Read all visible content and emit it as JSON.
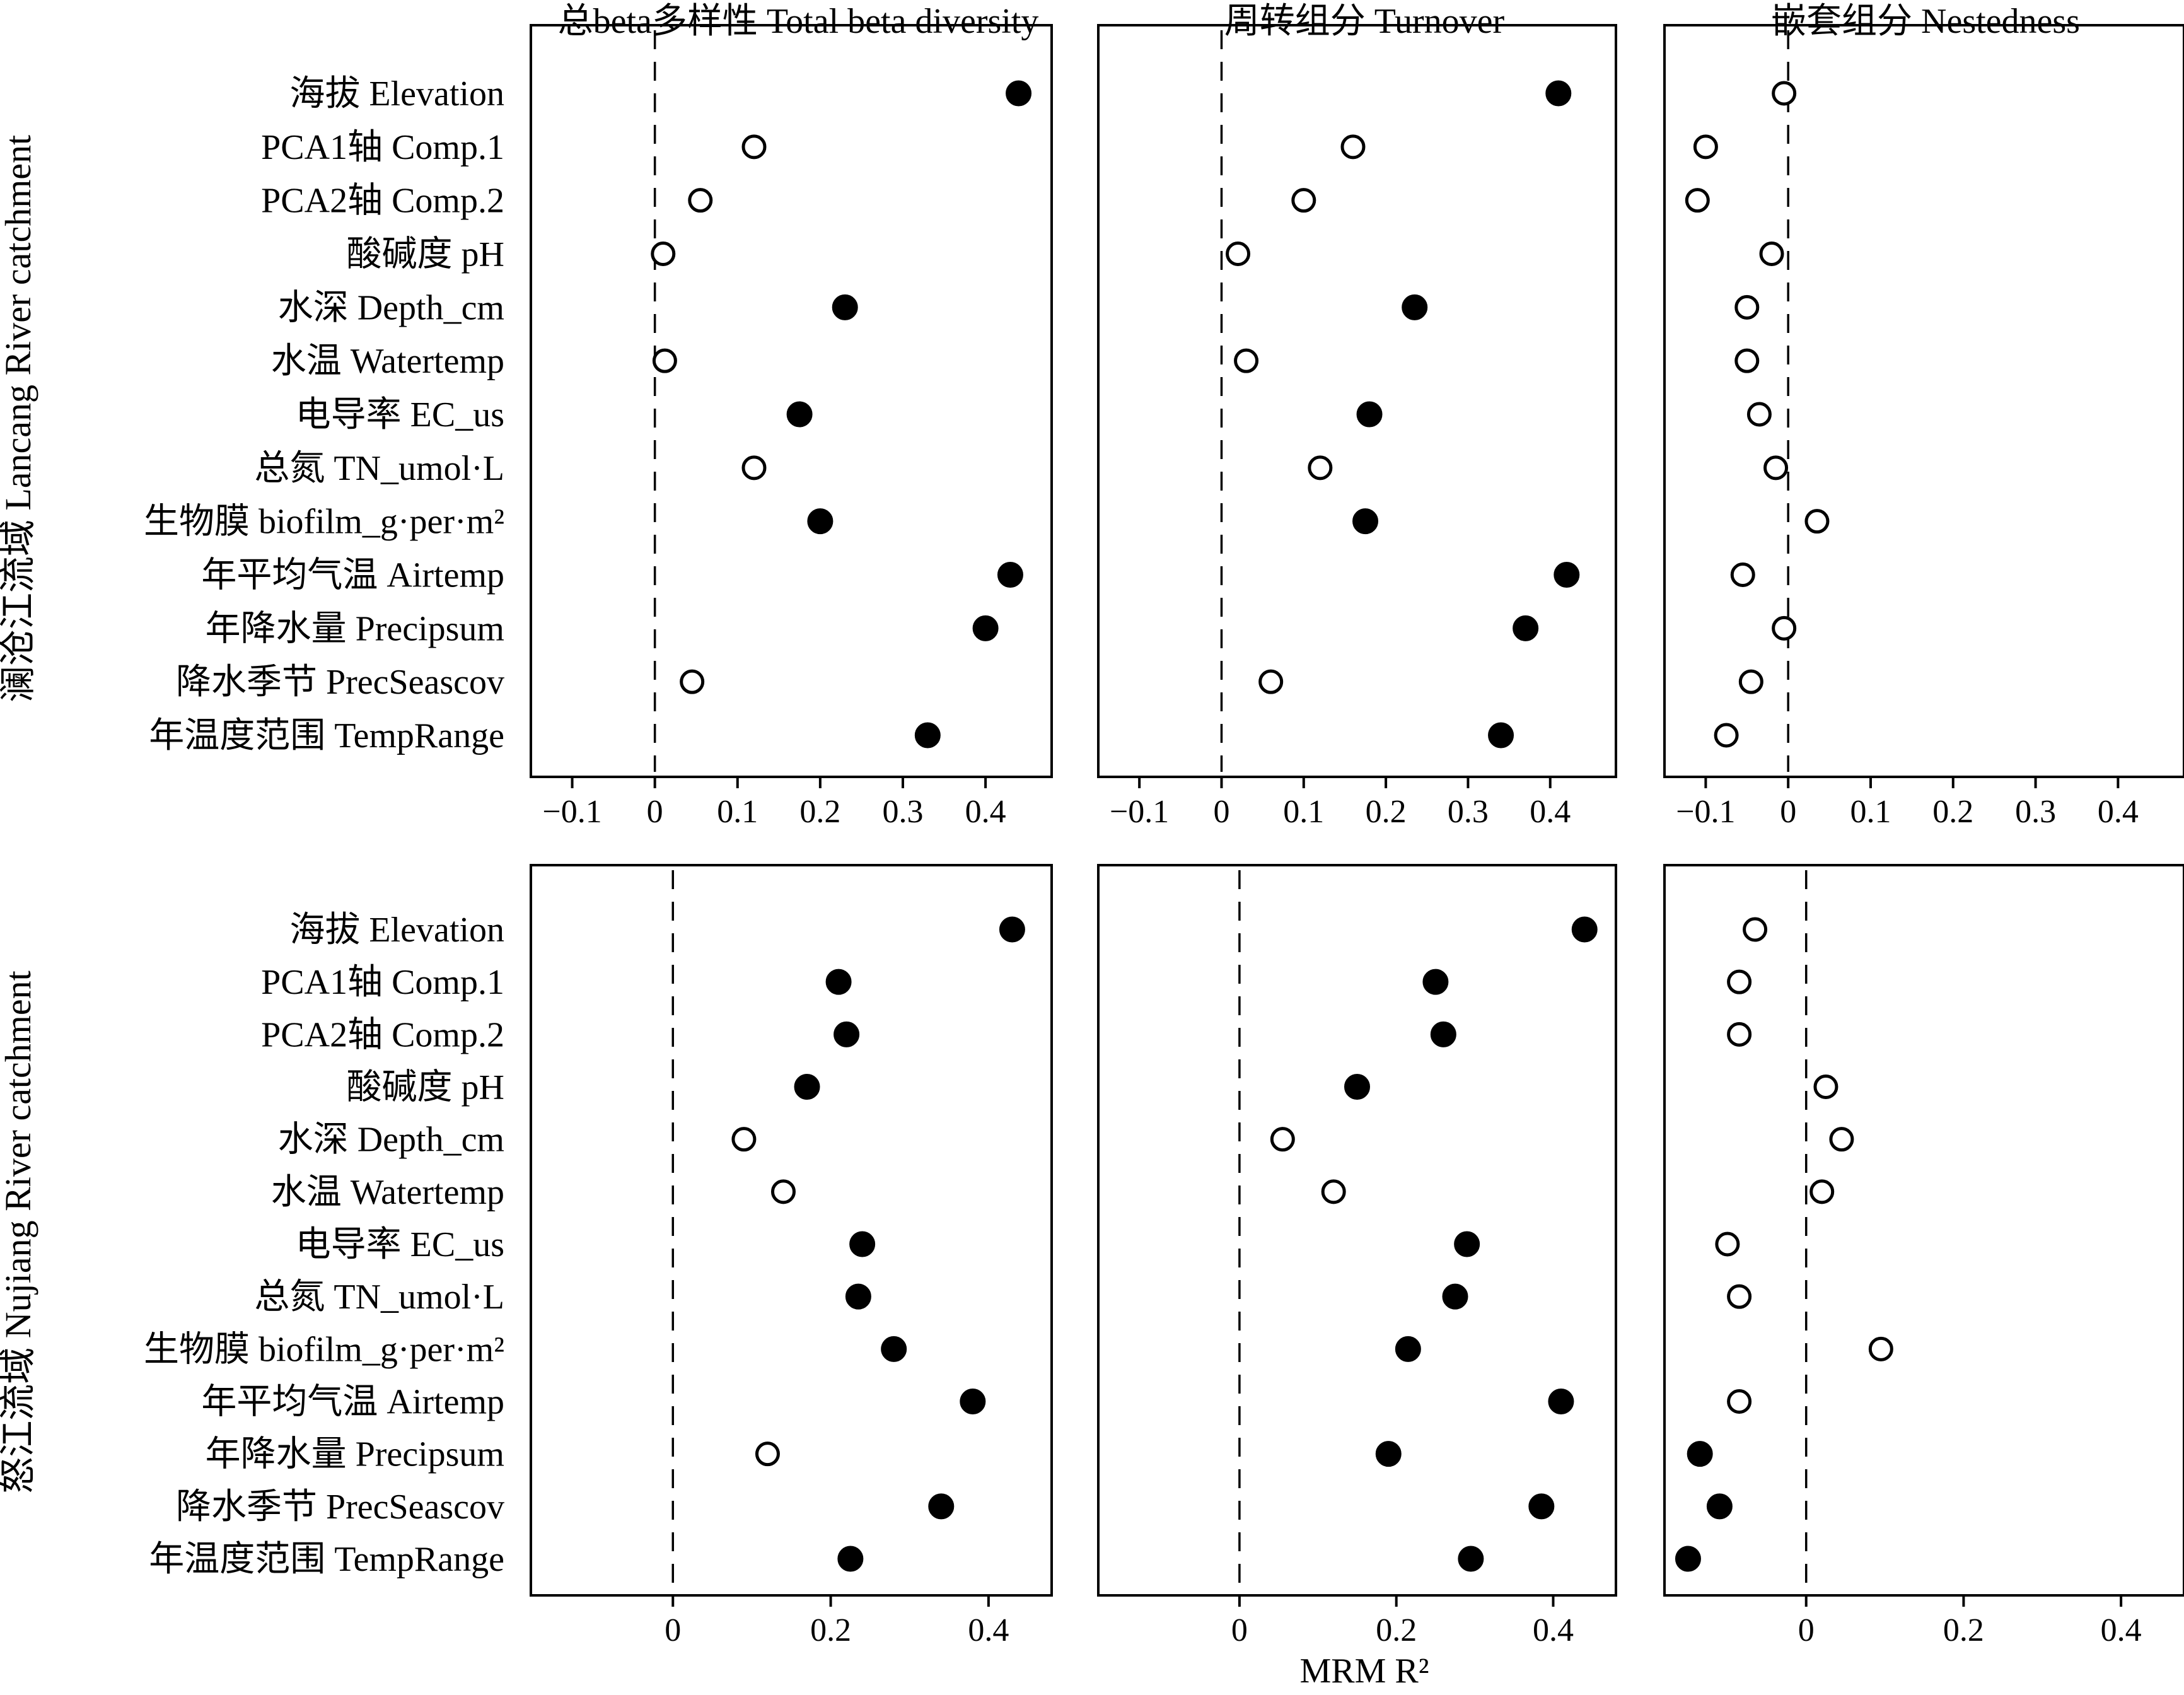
{
  "chart_data": {
    "type": "scatter",
    "column_titles": [
      "总beta多样性 Total beta diversity",
      "周转组分 Turnover",
      "嵌套组分 Nestedness"
    ],
    "row_labels": [
      "澜沧江流域 Lancang River catchment",
      "怒江流域 Nujiang River catchment"
    ],
    "xlabel": "MRM R²",
    "categories": [
      "海拔 Elevation",
      "PCA1轴 Comp.1",
      "PCA2轴 Comp.2",
      "酸碱度 pH",
      "水深 Depth_cm",
      "水温 Watertemp",
      "电导率 EC_us",
      "总氮 TN_umol·L",
      "生物膜 biofilm_g·per·m²",
      "年平均气温 Airtemp",
      "年降水量 Precipsum",
      "降水季节 PrecSeascov",
      "年温度范围 TempRange"
    ],
    "marker_legend": {
      "filled": "significant",
      "open": "not significant"
    },
    "reference_line": {
      "x": 0,
      "style": "dashed"
    },
    "panels": [
      {
        "row": 0,
        "col": 0,
        "xlim": [
          -0.15,
          0.48
        ],
        "ticks": [
          -0.1,
          0,
          0.1,
          0.2,
          0.3,
          0.4
        ],
        "tick_labels": [
          "−0.1",
          "0",
          "0.1",
          "0.2",
          "0.3",
          "0.4"
        ],
        "values": [
          0.44,
          0.12,
          0.055,
          0.01,
          0.23,
          0.012,
          0.175,
          0.12,
          0.2,
          0.43,
          0.4,
          0.045,
          0.33
        ],
        "filled": [
          true,
          false,
          false,
          false,
          true,
          false,
          true,
          false,
          true,
          true,
          true,
          false,
          true
        ]
      },
      {
        "row": 0,
        "col": 1,
        "xlim": [
          -0.15,
          0.48
        ],
        "ticks": [
          -0.1,
          0,
          0.1,
          0.2,
          0.3,
          0.4
        ],
        "tick_labels": [
          "−0.1",
          "0",
          "0.1",
          "0.2",
          "0.3",
          "0.4"
        ],
        "values": [
          0.41,
          0.16,
          0.1,
          0.02,
          0.235,
          0.03,
          0.18,
          0.12,
          0.175,
          0.42,
          0.37,
          0.06,
          0.34
        ],
        "filled": [
          true,
          false,
          false,
          false,
          true,
          false,
          true,
          false,
          true,
          true,
          true,
          false,
          true
        ]
      },
      {
        "row": 0,
        "col": 2,
        "xlim": [
          -0.15,
          0.48
        ],
        "ticks": [
          -0.1,
          0,
          0.1,
          0.2,
          0.3,
          0.4
        ],
        "tick_labels": [
          "−0.1",
          "0",
          "0.1",
          "0.2",
          "0.3",
          "0.4"
        ],
        "values": [
          -0.005,
          -0.1,
          -0.11,
          -0.02,
          -0.05,
          -0.05,
          -0.035,
          -0.015,
          0.035,
          -0.055,
          -0.005,
          -0.045,
          -0.075
        ],
        "filled": [
          false,
          false,
          false,
          false,
          false,
          false,
          false,
          false,
          false,
          false,
          false,
          false,
          false
        ]
      },
      {
        "row": 1,
        "col": 0,
        "xlim": [
          -0.18,
          0.48
        ],
        "ticks": [
          0,
          0.2,
          0.4
        ],
        "tick_labels": [
          "0",
          "0.2",
          "0.4"
        ],
        "values": [
          0.43,
          0.21,
          0.22,
          0.17,
          0.09,
          0.14,
          0.24,
          0.235,
          0.28,
          0.38,
          0.12,
          0.34,
          0.225
        ],
        "filled": [
          true,
          true,
          true,
          true,
          false,
          false,
          true,
          true,
          true,
          true,
          false,
          true,
          true
        ]
      },
      {
        "row": 1,
        "col": 1,
        "xlim": [
          -0.18,
          0.48
        ],
        "ticks": [
          0,
          0.2,
          0.4
        ],
        "tick_labels": [
          "0",
          "0.2",
          "0.4"
        ],
        "values": [
          0.44,
          0.25,
          0.26,
          0.15,
          0.055,
          0.12,
          0.29,
          0.275,
          0.215,
          0.41,
          0.19,
          0.385,
          0.295
        ],
        "filled": [
          true,
          true,
          true,
          true,
          false,
          false,
          true,
          true,
          true,
          true,
          true,
          true,
          true
        ]
      },
      {
        "row": 1,
        "col": 2,
        "xlim": [
          -0.18,
          0.48
        ],
        "ticks": [
          0,
          0.2,
          0.4
        ],
        "tick_labels": [
          "0",
          "0.2",
          "0.4"
        ],
        "values": [
          -0.065,
          -0.085,
          -0.085,
          0.025,
          0.045,
          0.02,
          -0.1,
          -0.085,
          0.095,
          -0.085,
          -0.135,
          -0.11,
          -0.15
        ],
        "filled": [
          false,
          false,
          false,
          false,
          false,
          false,
          false,
          false,
          false,
          false,
          true,
          true,
          true
        ]
      }
    ]
  }
}
